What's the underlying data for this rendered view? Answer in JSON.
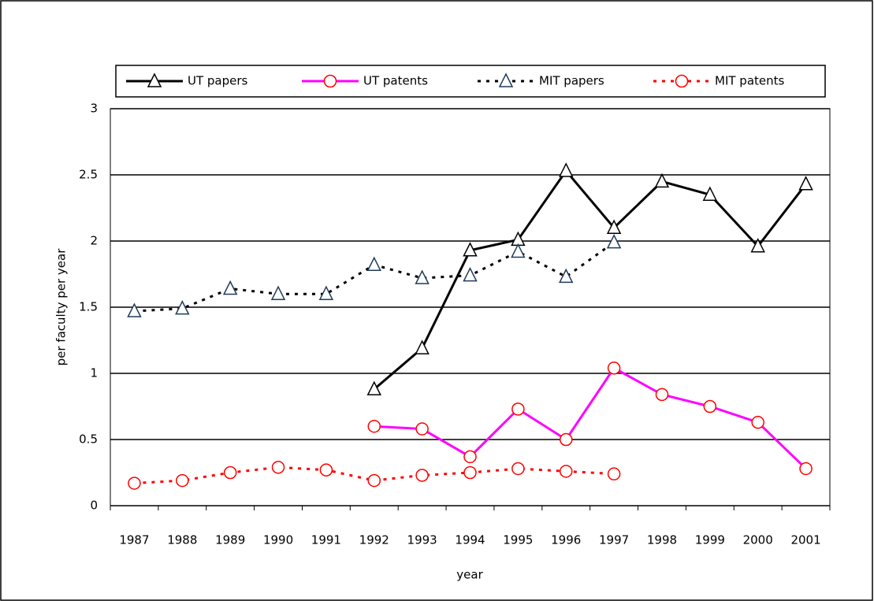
{
  "chart_data": {
    "type": "line",
    "x_label": "year",
    "y_label": "per faculty per year",
    "categories": [
      "1987",
      "1988",
      "1989",
      "1990",
      "1991",
      "1992",
      "1993",
      "1994",
      "1995",
      "1996",
      "1997",
      "1998",
      "1999",
      "2000",
      "2001"
    ],
    "series": [
      {
        "name": "UT papers",
        "color": "#000000",
        "marker_color": "#000000",
        "marker": "triangle",
        "dashed": false,
        "values": [
          null,
          null,
          null,
          null,
          null,
          0.88,
          1.19,
          1.93,
          2.01,
          2.53,
          2.1,
          2.45,
          2.35,
          1.96,
          2.43
        ]
      },
      {
        "name": "UT patents",
        "color": "#ff00ff",
        "marker_color": "#ff0000",
        "marker": "circle",
        "dashed": false,
        "values": [
          null,
          null,
          null,
          null,
          null,
          0.6,
          0.58,
          0.37,
          0.73,
          0.5,
          1.04,
          0.84,
          0.75,
          0.63,
          0.28
        ]
      },
      {
        "name": "MIT papers",
        "color": "#000000",
        "marker_color": "#1f3b5a",
        "marker": "triangle",
        "dashed": true,
        "values": [
          1.47,
          1.49,
          1.64,
          1.6,
          1.6,
          1.82,
          1.72,
          1.74,
          1.92,
          1.73,
          1.99,
          null,
          null,
          null,
          null
        ]
      },
      {
        "name": "MIT patents",
        "color": "#ff0000",
        "marker_color": "#ff0000",
        "marker": "circle",
        "dashed": true,
        "values": [
          0.17,
          0.19,
          0.25,
          0.29,
          0.27,
          0.19,
          0.23,
          0.25,
          0.28,
          0.26,
          0.24,
          null,
          null,
          null,
          null
        ]
      }
    ],
    "ylim": [
      0,
      3
    ],
    "yticks": [
      0,
      0.5,
      1,
      1.5,
      2,
      2.5,
      3
    ],
    "grid": true,
    "legend": "top"
  }
}
